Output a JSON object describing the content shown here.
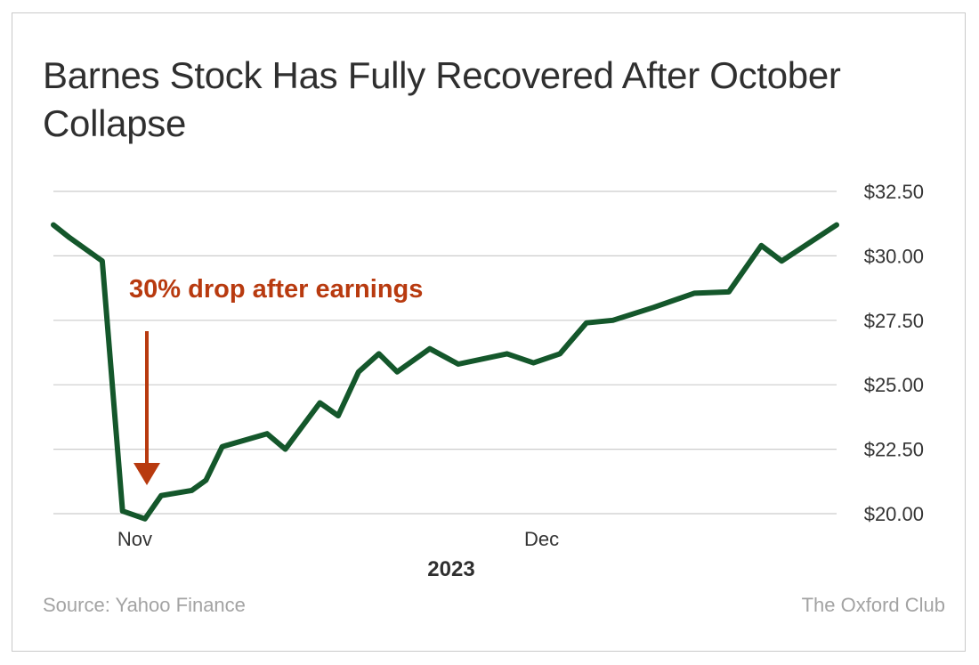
{
  "chart_data": {
    "type": "line",
    "title": "Barnes Stock Has Fully Recovered After October Collapse",
    "xlabel": "2023",
    "ylabel": "",
    "x_tick_labels": [
      {
        "label": "Nov",
        "x": 4
      },
      {
        "label": "Dec",
        "x": 24
      }
    ],
    "y_ticks": [
      20,
      22.5,
      25,
      27.5,
      30,
      32.5
    ],
    "y_tick_labels": [
      "$20.00",
      "$22.50",
      "$25.00",
      "$27.50",
      "$30.00",
      "$32.50"
    ],
    "ylim": [
      20,
      32.5
    ],
    "xlim": [
      0,
      38.5
    ],
    "grid": "horizontal",
    "line_color": "#14572b",
    "series": [
      {
        "x": [
          0,
          0.8,
          2.4,
          3.4,
          4.5,
          5.3,
          6.8,
          7.5,
          8.3,
          10.5,
          11.4,
          13.1,
          14.0,
          15.0,
          16.0,
          16.9,
          18.5,
          19.9,
          22.3,
          23.6,
          24.9,
          26.2,
          27.5,
          29.5,
          31.5,
          33.2,
          34.8,
          35.8,
          38.5
        ],
        "y": [
          31.2,
          30.7,
          29.8,
          20.1,
          19.8,
          20.7,
          20.9,
          21.3,
          22.6,
          23.1,
          22.5,
          24.3,
          23.8,
          25.5,
          26.2,
          25.5,
          26.4,
          25.8,
          26.2,
          25.85,
          26.2,
          27.4,
          27.5,
          28.0,
          28.55,
          28.6,
          30.4,
          29.8,
          31.2
        ]
      }
    ],
    "annotations": [
      {
        "text": "30% drop after earnings",
        "color": "#b83a0f",
        "points_to_x": 4.5
      }
    ]
  },
  "source": "Source: Yahoo Finance",
  "brand": "The Oxford Club"
}
